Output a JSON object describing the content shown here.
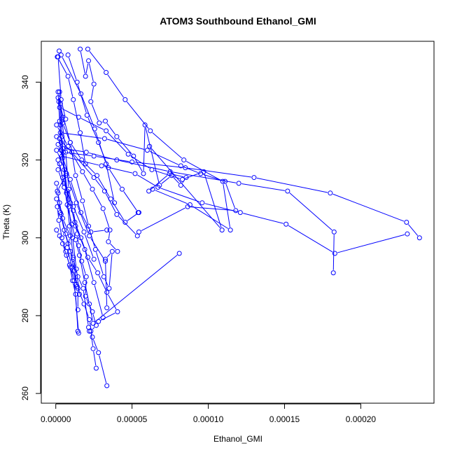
{
  "chart_data": {
    "type": "line",
    "title": "ATOM3 Southbound Ethanol_GMI",
    "xlabel": "Ethanol_GMI",
    "ylabel": "Theta (K)",
    "xlim": [
      -9.5e-06,
      0.000248
    ],
    "ylim": [
      257.5,
      350.5
    ],
    "xticks": [
      0,
      5e-05,
      0.0001,
      0.00015,
      0.0002
    ],
    "xtick_labels": [
      "0.00000",
      "0.00005",
      "0.00010",
      "0.00015",
      "0.00020"
    ],
    "yticks": [
      260,
      280,
      300,
      320,
      340
    ],
    "ytick_labels": [
      "260",
      "280",
      "300",
      "320",
      "340"
    ],
    "grid": false,
    "marker": "open-circle",
    "colors": {
      "series": "#0000ff",
      "axis": "#000000"
    },
    "series": [
      {
        "x": [
          2.2e-06,
          1.5e-06,
          3.5e-06,
          6.5e-06,
          3e-06,
          2.5e-06,
          3.5e-06,
          6.5e-06,
          1e-06,
          2.5e-06,
          4.5e-06,
          9.5e-06,
          7.5e-06,
          1.05e-05,
          1.4e-05,
          1.85e-05,
          2.2e-05,
          2.4e-05,
          2.8e-05,
          3.35e-05
        ],
        "y": [
          348,
          346.5,
          335.5,
          330.5,
          329,
          325.5,
          322.5,
          316,
          312,
          309,
          305,
          300.5,
          297.5,
          292.5,
          287.5,
          283,
          279,
          274.5,
          270.5,
          262
        ]
      },
      {
        "x": [
          1.6e-05,
          1.95e-05,
          2.15e-05,
          2.5e-05,
          2.3e-05,
          2.85e-05,
          3.25e-05,
          4e-05,
          5.1e-05,
          5.75e-05,
          5.85e-05,
          6.8e-05,
          7.6e-05,
          8.2e-05,
          8.55e-05,
          7.45e-05,
          6.1e-05
        ],
        "y": [
          348.5,
          341.5,
          345.5,
          339.5,
          335,
          329.5,
          330,
          326,
          321,
          316.5,
          329,
          313.5,
          316,
          313.5,
          315.5,
          316.5,
          312
        ]
      },
      {
        "x": [
          4.5e-06,
          4e-06,
          6.5e-06,
          8.5e-06,
          1.15e-05,
          1.4e-05,
          1.5e-05,
          1.7e-05,
          2e-05,
          1.95e-05,
          2.4e-05,
          2.65e-05,
          2.3e-05,
          2.45e-05,
          2.65e-05
        ],
        "y": [
          331,
          330.5,
          322,
          312.5,
          307,
          301,
          298,
          294,
          290,
          285,
          281,
          277.5,
          276,
          271.5,
          266.5
        ]
      },
      {
        "x": [
          1.5e-06,
          9.5e-06,
          1.3e-05,
          1.75e-05,
          2.15e-05,
          2.6e-05,
          3.15e-05,
          3.5e-05,
          3.7e-05,
          3.25e-05,
          3.35e-05
        ],
        "y": [
          336,
          324.5,
          316,
          309.5,
          303,
          297,
          290,
          287,
          296.5,
          294.5,
          282
        ],
        "note_excluded": false
      },
      {
        "x": [
          2.5e-06,
          1.5e-05,
          3.3e-05,
          4.75e-05,
          6.3e-05,
          8.3e-05,
          9.7e-05,
          0.000109,
          6.15e-05
        ],
        "y": [
          333.5,
          331,
          327.5,
          321.5,
          317.5,
          315,
          317,
          302,
          323.5
        ]
      },
      {
        "x": [
          3e-06,
          3.2e-05,
          6e-05,
          8.2e-05,
          9.5e-05,
          0.000111,
          0.000118,
          8.65e-05,
          5.45e-05
        ],
        "y": [
          327,
          325.5,
          322.5,
          318.5,
          316.5,
          314.5,
          307,
          308,
          301.5
        ]
      },
      {
        "x": [
          4.5e-06,
          2e-05,
          4e-05,
          7.5e-05,
          0.00012,
          0.000152,
          0.0001825,
          0.000182
        ],
        "y": [
          323,
          322,
          320,
          317,
          314,
          312,
          301.5,
          291
        ]
      },
      {
        "x": [
          5e-06,
          2.5e-05,
          5e-05,
          8.5e-05,
          0.00013,
          0.00018,
          0.00023,
          0.0002385
        ],
        "y": [
          322,
          321,
          319.5,
          318,
          315.5,
          311.5,
          304,
          300
        ]
      },
      {
        "x": [
          4e-06,
          3e-05,
          5.2e-05,
          6.7e-05,
          9.6e-05,
          0.000121,
          0.000151,
          0.000183,
          0.0002305
        ],
        "y": [
          321,
          318.5,
          316.5,
          313,
          309,
          306.5,
          303.5,
          296,
          301
        ]
      },
      {
        "x": [
          2.5e-06,
          4.5e-06,
          9.5e-06,
          1.25e-05,
          1.65e-05,
          2.1e-05,
          2.75e-05,
          3.35e-05,
          4.05e-05,
          2.8e-05
        ],
        "y": [
          319,
          315.5,
          309,
          304,
          300,
          295,
          291,
          286,
          281,
          278.5
        ]
      },
      {
        "x": [
          1.5e-06,
          5.5e-06,
          7.5e-06,
          1.05e-05,
          1.3e-05,
          1.55e-05,
          1.9e-05,
          2.2e-05,
          2.45e-05,
          8.1e-05
        ],
        "y": [
          317.5,
          313,
          308.5,
          303.5,
          299.5,
          295.5,
          288.5,
          283,
          278,
          296
        ]
      },
      {
        "x": [
          5e-07,
          3e-06,
          5.5e-06,
          8e-06,
          1.15e-05,
          1.45e-05,
          1.8e-05,
          2.15e-05,
          2.2e-05
        ],
        "y": [
          310,
          306.5,
          302,
          298.5,
          294.5,
          290,
          287,
          277,
          276
        ]
      },
      {
        "x": [
          5e-07,
          1.5e-06,
          3.5e-06,
          6.5e-06,
          9.5e-06,
          1.2e-05,
          1.45e-05,
          1.45e-05
        ],
        "y": [
          314,
          311.5,
          306,
          301,
          296.5,
          291.5,
          287,
          281.5
        ]
      },
      {
        "x": [
          1e-06,
          2e-06,
          4e-06,
          6.5e-06,
          9e-06,
          1.1e-05,
          1.3e-05,
          1.45e-05
        ],
        "y": [
          308,
          304.5,
          300,
          296.5,
          293,
          289,
          285.5,
          276
        ]
      },
      {
        "x": [
          5e-07,
          2.5e-06,
          4.5e-06,
          7e-06,
          9.5e-06,
          1.2e-05,
          1.5e-05
        ],
        "y": [
          302,
          300.5,
          298.5,
          295.5,
          292.5,
          289,
          275.5
        ]
      },
      {
        "x": [
          1.5e-06,
          2.5e-06,
          4.5e-06,
          7e-06,
          9e-06,
          1.15e-05,
          1.35e-05
        ],
        "y": [
          337.5,
          330,
          320.5,
          311.5,
          303,
          295,
          288
        ]
      },
      {
        "x": [
          2.5e-06,
          4e-06,
          5.5e-06,
          8.5e-06,
          1.1e-05,
          1.35e-05,
          1.55e-05
        ],
        "y": [
          337.5,
          326,
          317.5,
          308,
          300,
          292,
          285.5
        ]
      },
      {
        "x": [
          2e-06,
          3.5e-06,
          7.5e-06,
          1.3e-05,
          1.9e-05,
          2.5e-05,
          3.1e-05
        ],
        "y": [
          335,
          324.5,
          312,
          303,
          297,
          288.5,
          279.5
        ]
      },
      {
        "x": [
          3e-06,
          4.5e-06,
          9.5e-06,
          1.7e-05,
          2.7e-05,
          3.6e-05,
          4.55e-05,
          5.45e-05
        ],
        "y": [
          334.5,
          329.5,
          324.5,
          320,
          316,
          310,
          304,
          306.5
        ]
      },
      {
        "x": [
          5e-07,
          8e-06,
          1.75e-05,
          2.4e-05,
          3.1e-05,
          3.55e-05,
          3.45e-05,
          4.05e-05
        ],
        "y": [
          329,
          323.5,
          317,
          312.5,
          307.5,
          302,
          299,
          296.5
        ]
      },
      {
        "x": [
          5e-07,
          1.05e-05,
          2.5e-05,
          3.2e-05,
          4e-05,
          5.35e-05
        ],
        "y": [
          326,
          322,
          315.5,
          312,
          306,
          300.5
        ]
      },
      {
        "x": [
          1.5e-06,
          9.5e-06,
          1.65e-05,
          2.3e-05,
          3.35e-05
        ],
        "y": [
          324,
          315,
          306.5,
          301.5,
          302
        ]
      },
      {
        "x": [
          5e-07,
          7e-06,
          1.35e-05,
          2.2e-05,
          3.25e-05
        ],
        "y": [
          322.5,
          316.5,
          309,
          300.5,
          294
        ]
      },
      {
        "x": [
          1.5e-06,
          5.5e-06,
          1.15e-05,
          1.85e-05,
          2.5e-05
        ],
        "y": [
          320,
          314,
          308,
          301.5,
          294.5
        ]
      },
      {
        "x": [
          3.5e-06,
          1.65e-05,
          2.55e-05,
          3.3e-05,
          3.85e-05
        ],
        "y": [
          347,
          337,
          328,
          319,
          309
        ]
      },
      {
        "x": [
          1e-06,
          8e-06,
          1.15e-05,
          1.6e-05,
          1.95e-05
        ],
        "y": [
          346.5,
          341.5,
          335.5,
          327,
          319
        ]
      },
      {
        "x": [
          8e-06,
          1.4e-05,
          2.05e-05,
          2.8e-05,
          3.45e-05,
          4.35e-05,
          5.4e-05
        ],
        "y": [
          347,
          340,
          331.5,
          324.5,
          318,
          312.5,
          306.5
        ]
      },
      {
        "x": [
          2.1e-05,
          3.3e-05,
          4.55e-05,
          6.2e-05,
          8.4e-05,
          0.0001095,
          0.0001145,
          8.8e-05,
          6.35e-05
        ],
        "y": [
          348.5,
          342.5,
          335.5,
          327.5,
          320,
          314.5,
          302,
          308.5,
          312.5
        ]
      }
    ]
  }
}
